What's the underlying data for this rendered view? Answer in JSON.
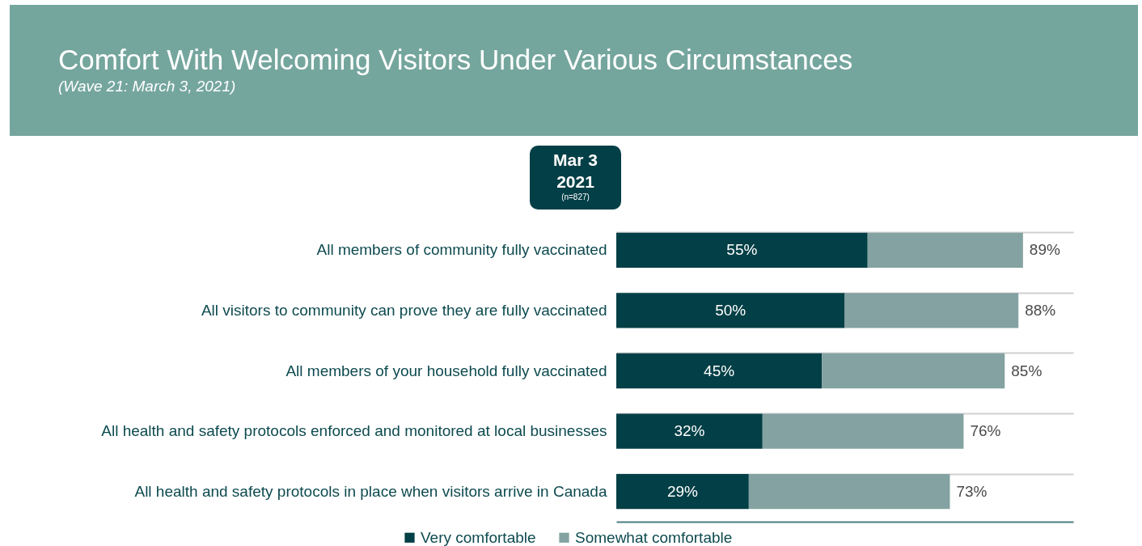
{
  "chart_data": {
    "type": "bar",
    "orientation": "horizontal",
    "stacked": true,
    "title": "Comfort With Welcoming Visitors Under Various Circumstances",
    "subtitle": "(Wave 21: March 3, 2021)",
    "annotations": [
      "Mar 3 2021",
      "(n=827)"
    ],
    "categories": [
      "All members of community fully vaccinated",
      "All visitors to community can prove they are fully vaccinated",
      "All members of your household fully vaccinated",
      "All health and safety protocols enforced and monitored at local businesses",
      "All health and safety protocols in place when visitors arrive in Canada"
    ],
    "series": [
      {
        "name": "Very comfortable",
        "color": "#033f46",
        "values": [
          55,
          50,
          45,
          32,
          29
        ],
        "value_labels": [
          "55%",
          "50%",
          "45%",
          "32%",
          "29%"
        ]
      },
      {
        "name": "Somewhat comfortable",
        "color": "#83a2a1",
        "values": [
          34,
          38,
          40,
          44,
          44
        ]
      }
    ],
    "totals": [
      "89%",
      "88%",
      "85%",
      "76%",
      "73%"
    ],
    "xlim": [
      0,
      100
    ],
    "tick_labels": "y",
    "grid": "y",
    "legend": "bottom"
  }
}
